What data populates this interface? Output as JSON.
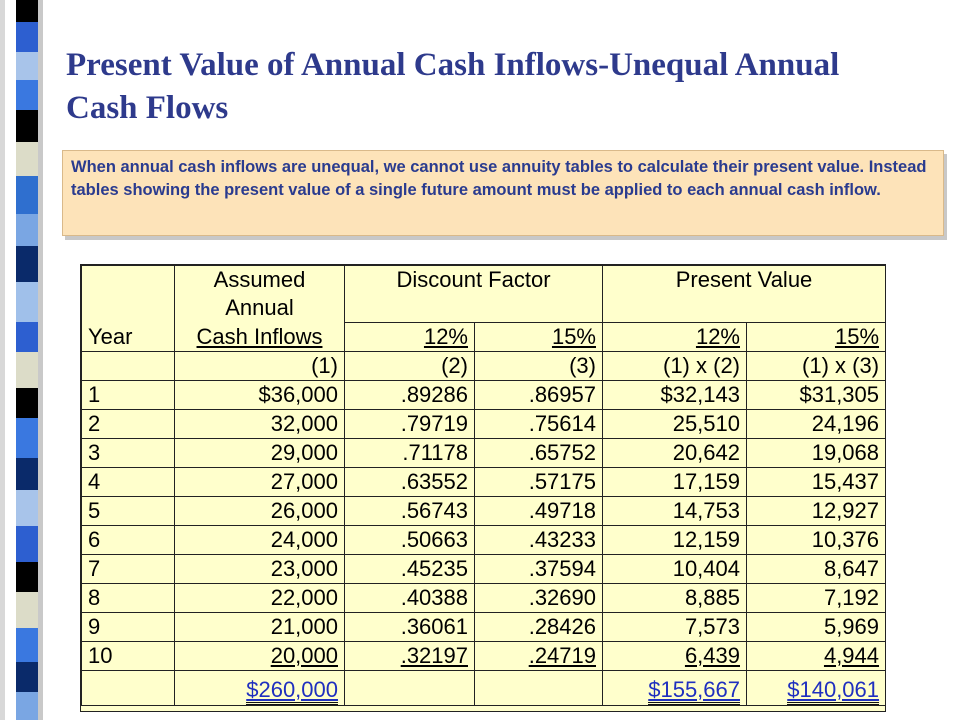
{
  "title": [
    "Present Value of Annual Cash Inflows-Unequal Annual",
    "Cash  Flows"
  ],
  "note": "When annual cash inflows are unequal, we cannot  use annuity tables to calculate their present value. Instead tables showing the present value of a single future amount must be applied to each annual cash inflow.",
  "table": {
    "header_top": {
      "cash_inflows": "Assumed Annual",
      "discount_factor": "Discount Factor",
      "present_value": "Present Value"
    },
    "header_year": {
      "year": "Year",
      "cash_inflows": "Cash Inflows",
      "df12": "12%",
      "df15": "15%",
      "pv12": "12%",
      "pv15": "15%"
    },
    "header_ref": {
      "cash_inflows": "(1)",
      "df12": "(2)",
      "df15": "(3)",
      "pv12": "(1) x (2)",
      "pv15": "(1) x (3)"
    },
    "rows": [
      {
        "year": "1",
        "cash": "$36,000",
        "df12": ".89286",
        "df15": ".86957",
        "pv12": "$32,143",
        "pv15": "$31,305"
      },
      {
        "year": "2",
        "cash": "32,000",
        "df12": ".79719",
        "df15": ".75614",
        "pv12": "25,510",
        "pv15": "24,196"
      },
      {
        "year": "3",
        "cash": "29,000",
        "df12": ".71178",
        "df15": ".65752",
        "pv12": "20,642",
        "pv15": "19,068"
      },
      {
        "year": "4",
        "cash": "27,000",
        "df12": ".63552",
        "df15": ".57175",
        "pv12": "17,159",
        "pv15": "15,437"
      },
      {
        "year": "5",
        "cash": "26,000",
        "df12": ".56743",
        "df15": ".49718",
        "pv12": "14,753",
        "pv15": "12,927"
      },
      {
        "year": "6",
        "cash": "24,000",
        "df12": ".50663",
        "df15": ".43233",
        "pv12": "12,159",
        "pv15": "10,376"
      },
      {
        "year": "7",
        "cash": "23,000",
        "df12": ".45235",
        "df15": ".37594",
        "pv12": "10,404",
        "pv15": "8,647"
      },
      {
        "year": "8",
        "cash": "22,000",
        "df12": ".40388",
        "df15": ".32690",
        "pv12": "8,885",
        "pv15": "7,192"
      },
      {
        "year": "9",
        "cash": "21,000",
        "df12": ".36061",
        "df15": ".28426",
        "pv12": "7,573",
        "pv15": "5,969"
      },
      {
        "year": "10",
        "cash": "20,000",
        "df12": ".32197",
        "df15": ".24719",
        "pv12": "6,439",
        "pv15": "4,944"
      }
    ],
    "totals": {
      "cash": "$260,000",
      "pv12": "$155,667",
      "pv15": "$140,061"
    }
  },
  "colors": {
    "title": "#2e3a8c",
    "note_bg": "#fde3b9",
    "note_text": "#2a3b8f",
    "table_bg": "#ffffcc",
    "totals_link": "#1f2fbf"
  }
}
